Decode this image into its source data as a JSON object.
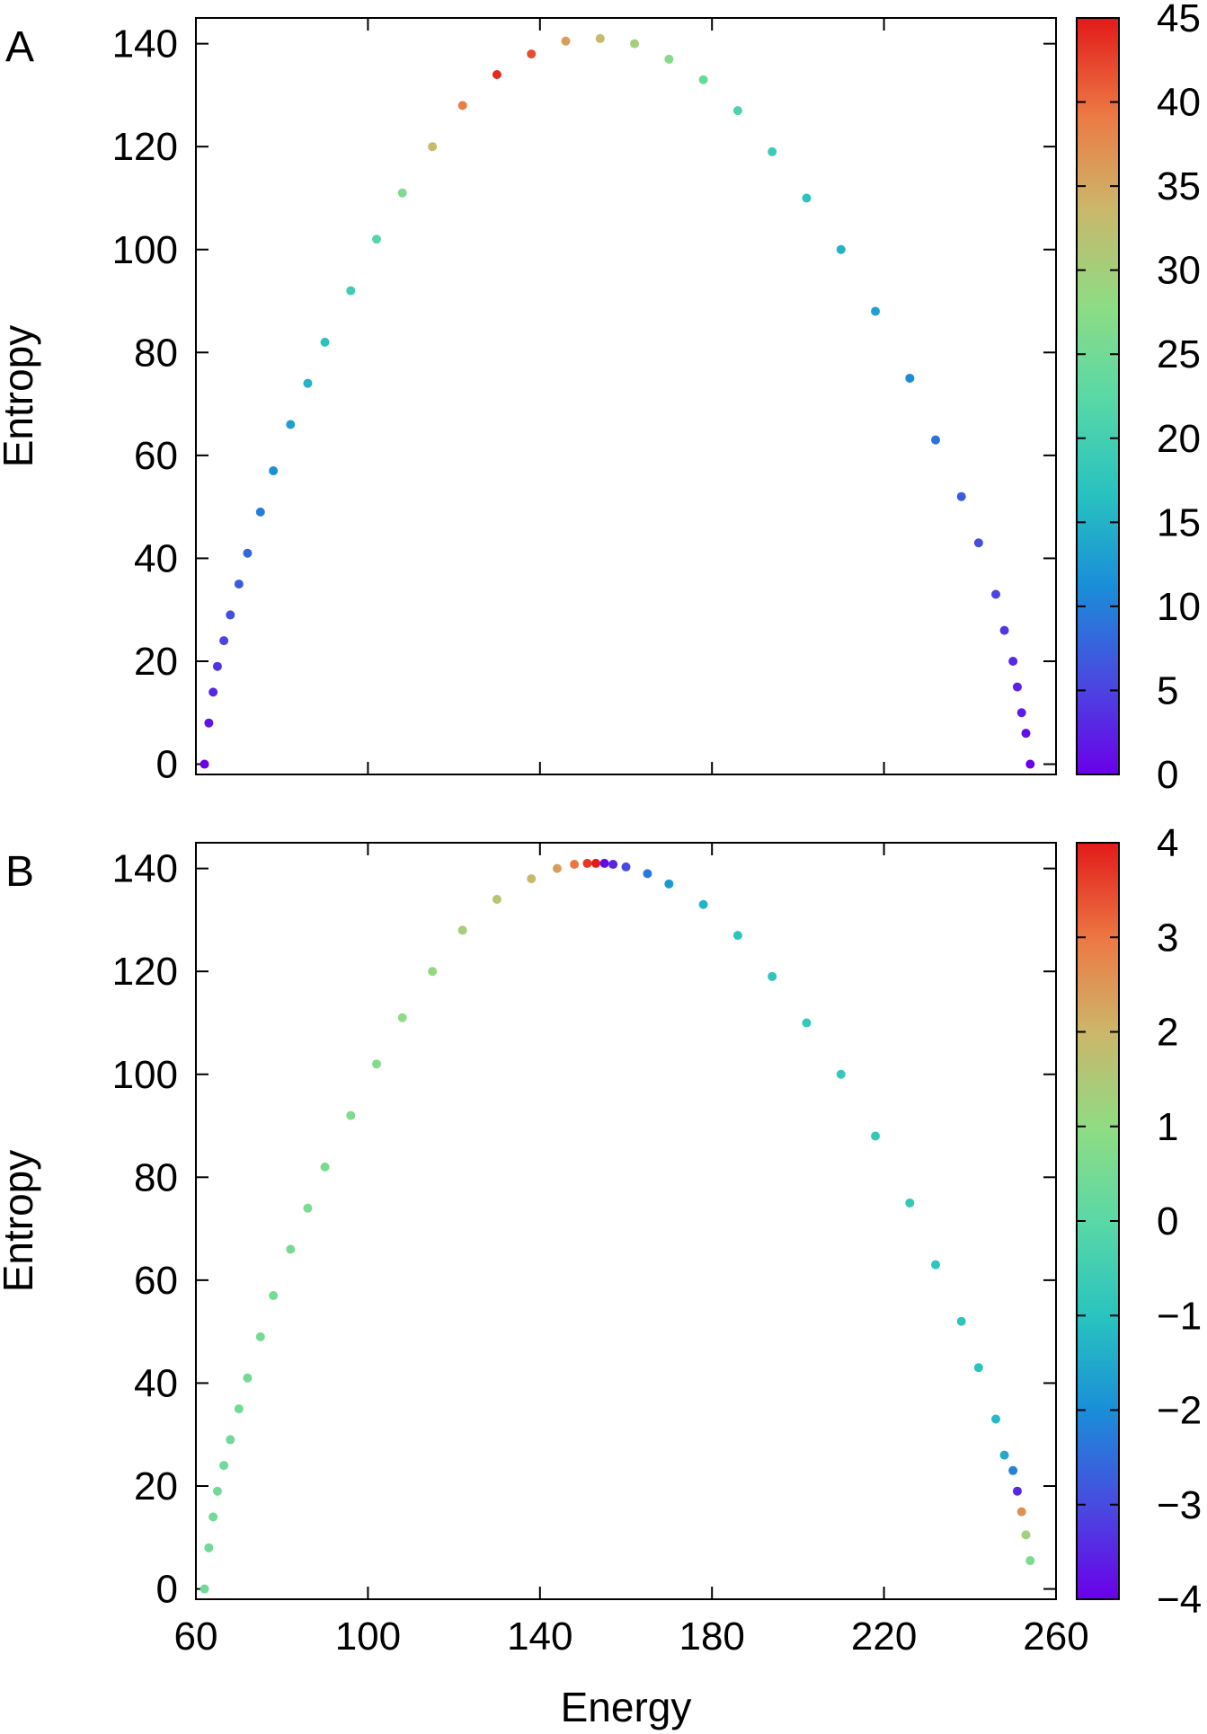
{
  "chart_data": [
    {
      "type": "scatter",
      "panel_label": "A",
      "xlabel": "",
      "ylabel": "Entropy",
      "xlim": [
        60,
        260
      ],
      "ylim": [
        -2,
        145
      ],
      "x_ticks": [
        60,
        100,
        140,
        180,
        220,
        260
      ],
      "x_tick_labels_shown": false,
      "y_ticks": [
        0,
        20,
        40,
        60,
        80,
        100,
        120,
        140
      ],
      "y_tick_labels": [
        "0",
        "20",
        "40",
        "60",
        "80",
        "100",
        "120",
        "140"
      ],
      "colorbar": {
        "range": [
          0,
          45
        ],
        "ticks": [
          0,
          5,
          10,
          15,
          20,
          25,
          30,
          35,
          40,
          45
        ],
        "tick_labels": [
          "0",
          "5",
          "10",
          "15",
          "20",
          "25",
          "30",
          "35",
          "40",
          "45"
        ],
        "colormap": "rainbow"
      },
      "series": [
        {
          "x": [
            62,
            63,
            64,
            65,
            66.5,
            68,
            70,
            72,
            75,
            78,
            82,
            86,
            90,
            96,
            102,
            108,
            115,
            122,
            130,
            138,
            146,
            154,
            162,
            170,
            178,
            186,
            194,
            202,
            210,
            218,
            226,
            232,
            238,
            242,
            246,
            248,
            250,
            251,
            252,
            253,
            254
          ],
          "y": [
            0,
            8,
            14,
            19,
            24,
            29,
            35,
            41,
            49,
            57,
            66,
            74,
            82,
            92,
            102,
            111,
            120,
            128,
            134,
            138,
            140.5,
            141,
            140,
            137,
            133,
            127,
            119,
            110,
            100,
            88,
            75,
            63,
            52,
            43,
            33,
            26,
            20,
            15,
            10,
            6,
            0
          ],
          "color_values": [
            0,
            1.5,
            3,
            4,
            5,
            6,
            7,
            8,
            10,
            11.5,
            13,
            15,
            17,
            19.5,
            22,
            26,
            33,
            39,
            44,
            42,
            36,
            33,
            30,
            27,
            24,
            21,
            19,
            17,
            15,
            13,
            11,
            9,
            7,
            6,
            5,
            4,
            3,
            2.5,
            2,
            1,
            0
          ]
        }
      ]
    },
    {
      "type": "scatter",
      "panel_label": "B",
      "xlabel": "Energy",
      "ylabel": "Entropy",
      "xlim": [
        60,
        260
      ],
      "ylim": [
        -2,
        145
      ],
      "x_ticks": [
        60,
        100,
        140,
        180,
        220,
        260
      ],
      "x_tick_labels": [
        "60",
        "100",
        "140",
        "180",
        "220",
        "260"
      ],
      "y_ticks": [
        0,
        20,
        40,
        60,
        80,
        100,
        120,
        140
      ],
      "y_tick_labels": [
        "0",
        "20",
        "40",
        "60",
        "80",
        "100",
        "120",
        "140"
      ],
      "colorbar": {
        "range": [
          -4,
          4
        ],
        "ticks": [
          -4,
          -3,
          -2,
          -1,
          0,
          1,
          2,
          3,
          4
        ],
        "tick_labels": [
          "−4",
          "−3",
          "−2",
          "−1",
          "0",
          "1",
          "2",
          "3",
          "4"
        ],
        "colormap": "rainbow"
      },
      "series": [
        {
          "x": [
            62,
            63,
            64,
            65,
            66.5,
            68,
            70,
            72,
            75,
            78,
            82,
            86,
            90,
            96,
            102,
            108,
            115,
            122,
            130,
            138,
            144,
            148,
            151,
            153,
            155,
            157,
            160,
            165,
            170,
            178,
            186,
            194,
            202,
            210,
            218,
            226,
            232,
            238,
            242,
            246,
            248,
            250,
            251,
            252,
            253,
            254
          ],
          "y": [
            0,
            8,
            14,
            19,
            24,
            29,
            35,
            41,
            49,
            57,
            66,
            74,
            82,
            92,
            102,
            111,
            120,
            128,
            134,
            138,
            140,
            140.8,
            141,
            141,
            141,
            140.8,
            140.3,
            139,
            137,
            133,
            127,
            119,
            110,
            100,
            88,
            75,
            63,
            52,
            43,
            33,
            26,
            23,
            19,
            15,
            10.5,
            5.5
          ],
          "color_values": [
            0.4,
            0.4,
            0.4,
            0.4,
            0.4,
            0.4,
            0.4,
            0.45,
            0.5,
            0.5,
            0.55,
            0.6,
            0.65,
            0.7,
            0.8,
            0.95,
            1.1,
            1.35,
            1.6,
            1.9,
            2.4,
            3.0,
            3.7,
            4.0,
            -3.9,
            -3.5,
            -3.0,
            -2.3,
            -1.8,
            -1.3,
            -1.0,
            -0.9,
            -0.8,
            -0.8,
            -0.8,
            -0.8,
            -0.85,
            -0.9,
            -1.0,
            -1.2,
            -1.5,
            -2.2,
            -3.5,
            2.6,
            1.3,
            0.6
          ]
        }
      ]
    }
  ]
}
